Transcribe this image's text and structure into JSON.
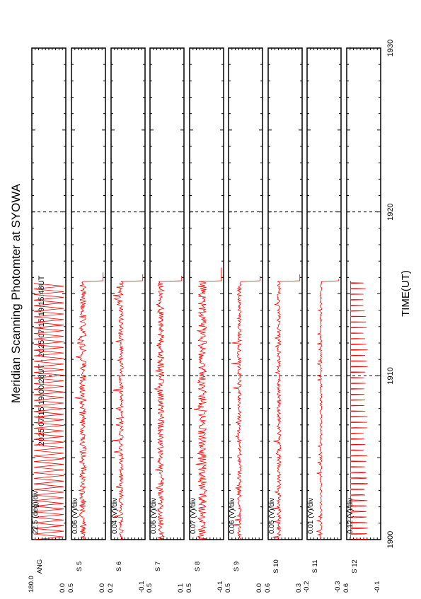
{
  "title": "Meridian Scanning Photomter at SYOWA",
  "time_range": "2025 07/15 19:00:28UT - 2025 07/15 19:15:48UT",
  "colors": {
    "trace": "#ff0000",
    "axes": "#000000",
    "background": "#ffffff"
  },
  "chart_data": {
    "type": "line",
    "orientation": "rotated-90-ccw",
    "title": "Meridian Scanning Photomter at SYOWA",
    "xlabel": "TIME(UT)",
    "x_tick_labels": [
      "1900",
      "1910",
      "1920",
      "1930"
    ],
    "x_ticks_minutes": [
      0,
      10,
      20,
      30
    ],
    "xlim_minutes": [
      0,
      30
    ],
    "data_end_minute": 15.8,
    "grid": "dashed vertical lines at each 10 min",
    "panels": [
      {
        "scale": "22.5 (deg)/div",
        "label": "ANG",
        "ymax": "180.0",
        "ymin": "0.0",
        "kind": "sweep",
        "period_min": 0.34,
        "level": 0.5,
        "noise": 0.0,
        "spikes": 0,
        "spike_len": 0,
        "tail_min": 0
      },
      {
        "scale": "0.06 (V)/div",
        "label": "S 5",
        "ymax": "0.5",
        "ymin": "0.0",
        "kind": "noise",
        "period_min": 0,
        "level": 0.32,
        "noise": 0.11,
        "spikes": 0.03,
        "spike_len": 0.12,
        "tail_min": 0.5
      },
      {
        "scale": "0.04 (V)/div",
        "label": "S 6",
        "ymax": "0.2",
        "ymin": "-0.1",
        "kind": "noise",
        "period_min": 0,
        "level": 0.28,
        "noise": 0.07,
        "spikes": 0.05,
        "spike_len": 0.15,
        "tail_min": 0.4
      },
      {
        "scale": "0.06 (V)/div",
        "label": "S 7",
        "ymax": "0.5",
        "ymin": "0.1",
        "kind": "noise",
        "period_min": 0,
        "level": 0.3,
        "noise": 0.1,
        "spikes": 0.04,
        "spike_len": 0.12,
        "tail_min": 0.3
      },
      {
        "scale": "0.07 (V)/div",
        "label": "S 8",
        "ymax": "0.5",
        "ymin": "-0.1",
        "kind": "noise",
        "period_min": 0,
        "level": 0.36,
        "noise": 0.14,
        "spikes": 0.03,
        "spike_len": 0.12,
        "tail_min": 0.8
      },
      {
        "scale": "0.06 (V)/div",
        "label": "S 9",
        "ymax": "0.5",
        "ymin": "0.0",
        "kind": "noise",
        "period_min": 0,
        "level": 0.3,
        "noise": 0.06,
        "spikes": 0.05,
        "spike_len": 0.15,
        "tail_min": 0.3
      },
      {
        "scale": "0.05 (V)/div",
        "label": "S 10",
        "ymax": "0.6",
        "ymin": "0.3",
        "kind": "noise",
        "period_min": 0,
        "level": 0.3,
        "noise": 0.06,
        "spikes": 0.05,
        "spike_len": 0.15,
        "tail_min": 0.4
      },
      {
        "scale": "0.01 (V)/div",
        "label": "S 11",
        "ymax": "-0.2",
        "ymin": "-0.3",
        "kind": "noise",
        "period_min": 0,
        "level": 0.4,
        "noise": 0.03,
        "spikes": 0.04,
        "spike_len": 0.1,
        "tail_min": 0.1
      },
      {
        "scale": "0.12 (V)/div",
        "label": "S 12",
        "ymax": "0.6",
        "ymin": "-0.1",
        "kind": "pulses",
        "period_min": 0.34,
        "level": 0.08,
        "noise": 0.01,
        "spikes": 0,
        "spike_len": 0.55,
        "tail_min": 0
      }
    ]
  }
}
